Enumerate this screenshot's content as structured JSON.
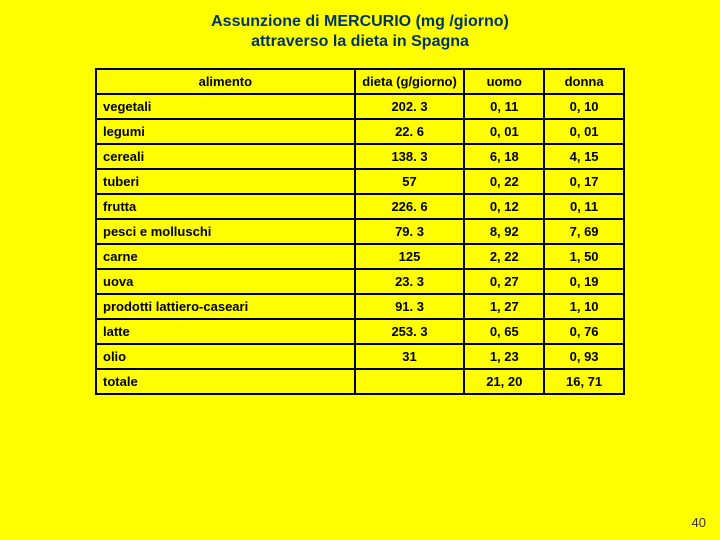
{
  "title_line1": "Assunzione di MERCURIO (mg /giorno)",
  "title_line2": "attraverso la dieta in Spagna",
  "title_fontsize": "16px",
  "background_color": "#ffff00",
  "header_bg": "#ffff00",
  "cell_bg": "#ffff00",
  "text_color": "#000000",
  "title_color": "#003366",
  "border_color": "#000000",
  "table_fontsize": "13px",
  "page_number": "40",
  "col_widths": [
    "260px",
    "110px",
    "80px",
    "80px"
  ],
  "columns": [
    "alimento",
    "dieta (g/giorno)",
    "uomo",
    "donna"
  ],
  "rows": [
    [
      "vegetali",
      "202. 3",
      "0, 11",
      "0, 10"
    ],
    [
      "legumi",
      "22. 6",
      "0, 01",
      "0, 01"
    ],
    [
      "cereali",
      "138. 3",
      "6, 18",
      "4, 15"
    ],
    [
      "tuberi",
      "57",
      "0, 22",
      "0, 17"
    ],
    [
      "frutta",
      "226. 6",
      "0, 12",
      "0, 11"
    ],
    [
      "pesci e molluschi",
      "79. 3",
      "8, 92",
      "7, 69"
    ],
    [
      "carne",
      "125",
      "2, 22",
      "1, 50"
    ],
    [
      "uova",
      "23. 3",
      "0, 27",
      "0, 19"
    ],
    [
      "prodotti lattiero-caseari",
      "91. 3",
      "1, 27",
      "1, 10"
    ],
    [
      "latte",
      "253. 3",
      "0, 65",
      "0, 76"
    ],
    [
      "olio",
      "31",
      "1, 23",
      "0, 93"
    ],
    [
      "totale",
      "",
      "21, 20",
      "16, 71"
    ]
  ]
}
